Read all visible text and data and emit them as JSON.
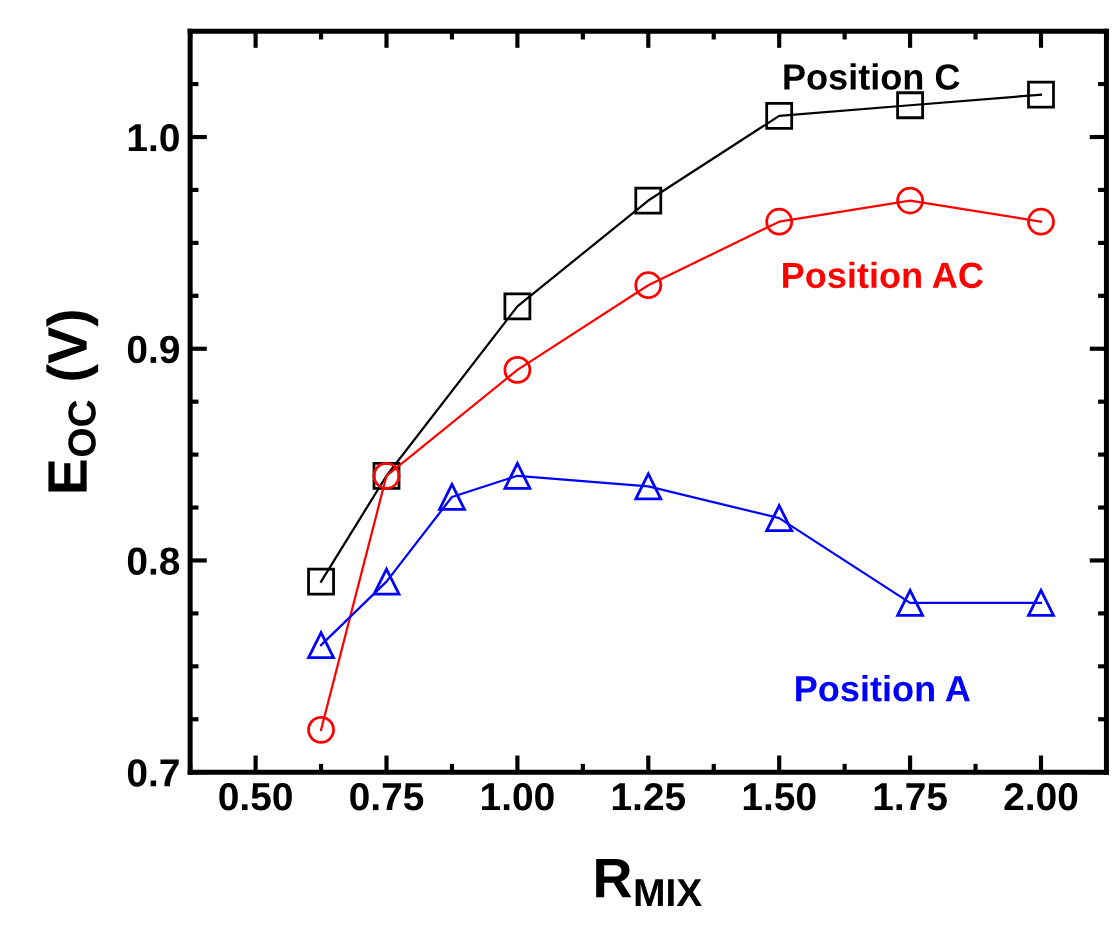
{
  "chart_data": {
    "type": "line",
    "xlabel": "R$_{MIX}$",
    "ylabel": "E$_{OC}$ (V)",
    "xlim": [
      0.375,
      2.125
    ],
    "xticks": [
      {
        "value": 0.5,
        "label": "0.50"
      },
      {
        "value": 0.75,
        "label": "0.75"
      },
      {
        "value": 1.0,
        "label": "1.00"
      },
      {
        "value": 1.25,
        "label": "1.25"
      },
      {
        "value": 1.5,
        "label": "1.50"
      },
      {
        "value": 1.75,
        "label": "1.75"
      },
      {
        "value": 2.0,
        "label": "2.00"
      }
    ],
    "ylim": [
      0.7,
      1.05
    ],
    "yticks": [
      0.7,
      0.8,
      0.9,
      {
        "value": 1.0,
        "label": "1.0"
      }
    ],
    "grid": false,
    "legend": "right",
    "line_style": "solid",
    "series": [
      {
        "name": "Position C",
        "color": "#000000",
        "marker": "square",
        "x": [
          0.625,
          0.75,
          1.0,
          1.25,
          1.5,
          1.75,
          2.0
        ],
        "values": [
          0.79,
          0.84,
          0.92,
          0.97,
          1.01,
          1.015,
          1.02
        ]
      },
      {
        "name": "Position AC",
        "color": "#ff0000",
        "marker": "circle",
        "x": [
          0.625,
          0.75,
          1.0,
          1.25,
          1.5,
          1.75,
          2.0
        ],
        "values": [
          0.72,
          0.84,
          0.89,
          0.93,
          0.96,
          0.97,
          0.96
        ]
      },
      {
        "name": "Position A",
        "color": "#0000ff",
        "marker": "triangle",
        "x": [
          0.625,
          0.75,
          0.875,
          1.0,
          1.25,
          1.5,
          1.75,
          2.0
        ],
        "values": [
          0.76,
          0.79,
          0.83,
          0.84,
          0.835,
          0.82,
          0.78,
          0.78
        ]
      }
    ]
  }
}
